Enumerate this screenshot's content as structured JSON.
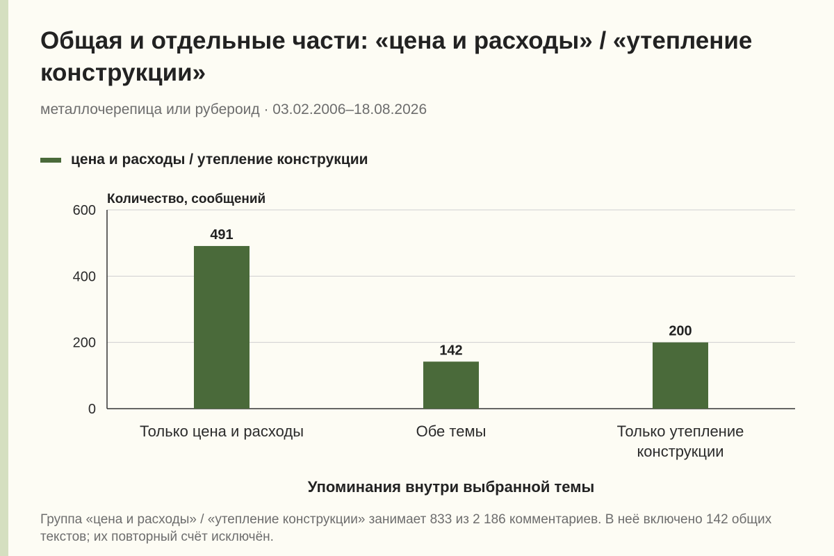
{
  "title": "Общая и отдельные части: «цена и расходы» / «утепление конструкции»",
  "subtitle": "металлочерепица или рубероид · 03.02.2006–18.08.2026",
  "legend": {
    "label": "цена и расходы / утепление конструкции",
    "color": "#4a6a3a"
  },
  "footnote": "Группа «цена и расходы» / «утепление конструкции» занимает 833 из 2 186 комментариев. В неё включено 142 общих текстов; их повторный счёт исключён.",
  "chart_data": {
    "type": "bar",
    "categories": [
      "Только цена и расходы",
      "Обе темы",
      "Только утепление конструкции"
    ],
    "series": [
      {
        "name": "цена и расходы / утепление конструкции",
        "values": [
          491,
          142,
          200
        ],
        "color": "#4a6a3a"
      }
    ],
    "data_labels": [
      "491",
      "142",
      "200"
    ],
    "ylabel": "Количество, сообщений",
    "xlabel": "Упоминания внутри выбранной темы",
    "ylim": [
      0,
      600
    ],
    "yticks": [
      0,
      200,
      400,
      600
    ],
    "grid": true,
    "legend_position": "top-left"
  }
}
